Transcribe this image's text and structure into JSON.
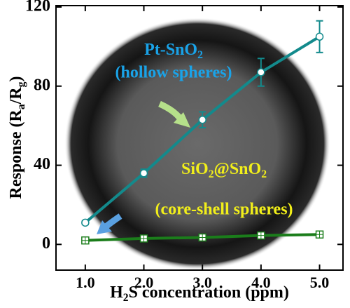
{
  "chart_data": {
    "type": "line",
    "x_label": [
      "H",
      "2",
      "S concentration (ppm)"
    ],
    "y_label": [
      "Response (R",
      "a",
      "/R",
      "g",
      ")"
    ],
    "x": [
      1.0,
      2.0,
      3.0,
      4.0,
      5.0
    ],
    "series": [
      {
        "name": [
          "Pt-SnO",
          "2"
        ],
        "subtitle": "(hollow spheres)",
        "label_color": "#1aa3e8",
        "color": "#138a8c",
        "marker": "circle",
        "values": [
          11,
          36,
          63,
          87,
          105
        ],
        "errors": [
          1,
          2,
          4,
          7,
          8
        ]
      },
      {
        "name": [
          "SiO",
          "2",
          "@SnO",
          "2"
        ],
        "subtitle": "(core-shell spheres)",
        "label_color": "#f2ef1a",
        "color": "#1b7d1b",
        "marker": "square",
        "values": [
          2,
          3,
          3.5,
          4.5,
          5
        ],
        "errors": [
          1,
          1,
          1,
          1,
          1
        ]
      }
    ],
    "xlim": [
      0.5,
      5.4
    ],
    "ylim": [
      -13,
      120.7
    ],
    "xticks": [
      {
        "value": 1,
        "label": "1.0"
      },
      {
        "value": 2,
        "label": "2.0"
      },
      {
        "value": 3,
        "label": "3.0"
      },
      {
        "value": 4,
        "label": "4.0"
      },
      {
        "value": 5,
        "label": "5.0"
      }
    ],
    "yticks": [
      0,
      40,
      80,
      120
    ]
  }
}
